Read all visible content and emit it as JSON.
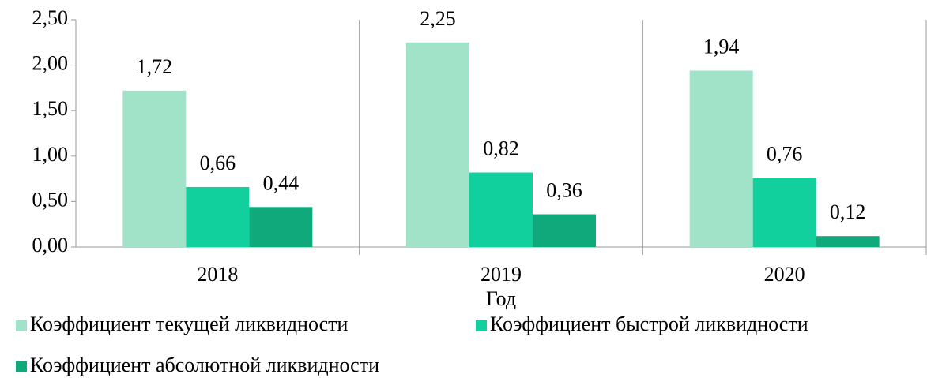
{
  "chart_data": {
    "type": "bar",
    "categories": [
      "2018",
      "2019",
      "2020"
    ],
    "xlabel": "Год",
    "series": [
      {
        "name": "Коэффициент текущей ликвидности",
        "color": "#a1e3c9",
        "values": [
          1.72,
          2.25,
          1.94
        ],
        "value_labels": [
          "1,72",
          "2,25",
          "1,94"
        ]
      },
      {
        "name": "Коэффициент быстрой ликвидности",
        "color": "#12d09e",
        "values": [
          0.66,
          0.82,
          0.76
        ],
        "value_labels": [
          "0,66",
          "0,82",
          "0,76"
        ]
      },
      {
        "name": "Коэффициент абсолютной ликвидности",
        "color": "#10a97b",
        "values": [
          0.44,
          0.36,
          0.12
        ],
        "value_labels": [
          "0,44",
          "0,36",
          "0,12"
        ]
      }
    ],
    "ylim": [
      0,
      2.5
    ],
    "yticks": [
      {
        "value": 0,
        "label": "0,00"
      },
      {
        "value": 0.5,
        "label": "0,50"
      },
      {
        "value": 1,
        "label": "1,00"
      },
      {
        "value": 1.5,
        "label": "1,50"
      },
      {
        "value": 2,
        "label": "2,00"
      },
      {
        "value": 2.5,
        "label": "2,50"
      }
    ],
    "grid": false
  }
}
